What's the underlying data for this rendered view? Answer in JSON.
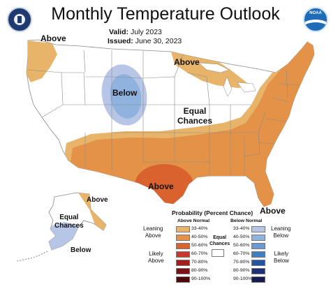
{
  "header": {
    "title": "Monthly Temperature Outlook",
    "valid_label": "Valid:",
    "valid_value": "July 2023",
    "issued_label": "Issued:",
    "issued_value": "June 30, 2023"
  },
  "logos": {
    "left": "department-of-commerce-seal",
    "left_text": "DEPARTMENT OF COMMERCE",
    "right": "noaa-logo",
    "right_text": "NOAA"
  },
  "map_labels": {
    "above_nw": "Above",
    "above_great_lakes": "Above",
    "below_plains": "Below",
    "equal_chances_line1": "Equal",
    "equal_chances_line2": "Chances",
    "above_south": "Above",
    "above_florida": "Above",
    "alaska_above": "Above",
    "alaska_equal_line1": "Equal",
    "alaska_equal_line2": "Chances",
    "alaska_below": "Below"
  },
  "legend": {
    "title": "Probability (Percent Chance)",
    "above_header": "Above Normal",
    "below_header": "Below Normal",
    "leaning_above_1": "Leaning",
    "leaning_above_2": "Above",
    "likely_above_1": "Likely",
    "likely_above_2": "Above",
    "leaning_below_1": "Leaning",
    "leaning_below_2": "Below",
    "likely_below_1": "Likely",
    "likely_below_2": "Below",
    "equal_1": "Equal",
    "equal_2": "Chances",
    "above_rows": [
      {
        "label": "33-40%",
        "color": "#e8b46a"
      },
      {
        "label": "40-50%",
        "color": "#e39247"
      },
      {
        "label": "50-60%",
        "color": "#d9622e"
      },
      {
        "label": "60-70%",
        "color": "#c9382a"
      },
      {
        "label": "70-80%",
        "color": "#a61c1c"
      },
      {
        "label": "80-90%",
        "color": "#7d0f14"
      },
      {
        "label": "90-100%",
        "color": "#4e070a"
      }
    ],
    "below_rows": [
      {
        "label": "33-40%",
        "color": "#b7c6e6"
      },
      {
        "label": "40-50%",
        "color": "#8fb2de"
      },
      {
        "label": "50-60%",
        "color": "#6a99d3"
      },
      {
        "label": "60-70%",
        "color": "#3f7fc6"
      },
      {
        "label": "70-80%",
        "color": "#2455a3"
      },
      {
        "label": "80-90%",
        "color": "#1f2f7a"
      },
      {
        "label": "90-100%",
        "color": "#181a50"
      }
    ]
  },
  "colors": {
    "lean_above": "#e8b46a",
    "above_40_50": "#e39247",
    "above_50_60": "#d9622e",
    "lean_below": "#b7c6e6",
    "below_40_50": "#8fb2de"
  }
}
